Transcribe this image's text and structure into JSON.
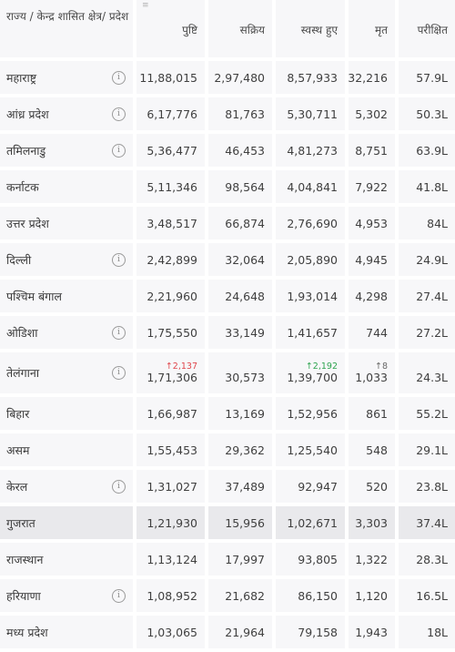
{
  "headers": {
    "state": "राज्य / केन्द्र शासित क्षेत्र/ प्रदेश",
    "confirmed": "पुष्टि",
    "active": "सक्रिय",
    "recovered": "स्वस्थ हुए",
    "deceased": "मृत",
    "tested": "परीक्षित"
  },
  "sort_icon": "sort-icon",
  "info_icon": "info-icon",
  "rows": [
    {
      "state": "महाराष्ट्र",
      "confirmed": "11,88,015",
      "active": "2,97,480",
      "recovered": "8,57,933",
      "deceased": "32,216",
      "tested": "57.9L"
    },
    {
      "state": "आंध्र प्रदेश",
      "confirmed": "6,17,776",
      "active": "81,763",
      "recovered": "5,30,711",
      "deceased": "5,302",
      "tested": "50.3L"
    },
    {
      "state": "तमिलनाडु",
      "confirmed": "5,36,477",
      "active": "46,453",
      "recovered": "4,81,273",
      "deceased": "8,751",
      "tested": "63.9L"
    },
    {
      "state": "कर्नाटक",
      "confirmed": "5,11,346",
      "active": "98,564",
      "recovered": "4,04,841",
      "deceased": "7,922",
      "tested": "41.8L"
    },
    {
      "state": "उत्तर प्रदेश",
      "confirmed": "3,48,517",
      "active": "66,874",
      "recovered": "2,76,690",
      "deceased": "4,953",
      "tested": "84L"
    },
    {
      "state": "दिल्ली",
      "confirmed": "2,42,899",
      "active": "32,064",
      "recovered": "2,05,890",
      "deceased": "4,945",
      "tested": "24.9L"
    },
    {
      "state": "पश्चिम बंगाल",
      "confirmed": "2,21,960",
      "active": "24,648",
      "recovered": "1,93,014",
      "deceased": "4,298",
      "tested": "27.4L"
    },
    {
      "state": "ओडिशा",
      "confirmed": "1,75,550",
      "active": "33,149",
      "recovered": "1,41,657",
      "deceased": "744",
      "tested": "27.2L"
    },
    {
      "state": "तेलंगाना",
      "confirmed": "1,71,306",
      "confirmed_delta": "↑2,137",
      "active": "30,573",
      "recovered": "1,39,700",
      "recovered_delta": "↑2,192",
      "deceased": "1,033",
      "deceased_delta": "↑8",
      "tested": "24.3L"
    },
    {
      "state": "बिहार",
      "confirmed": "1,66,987",
      "active": "13,169",
      "recovered": "1,52,956",
      "deceased": "861",
      "tested": "55.2L"
    },
    {
      "state": "असम",
      "confirmed": "1,55,453",
      "active": "29,362",
      "recovered": "1,25,540",
      "deceased": "548",
      "tested": "29.1L"
    },
    {
      "state": "केरल",
      "confirmed": "1,31,027",
      "active": "37,489",
      "recovered": "92,947",
      "deceased": "520",
      "tested": "23.8L"
    },
    {
      "state": "गुजरात",
      "confirmed": "1,21,930",
      "active": "15,956",
      "recovered": "1,02,671",
      "deceased": "3,303",
      "tested": "37.4L"
    },
    {
      "state": "राजस्थान",
      "confirmed": "1,13,124",
      "active": "17,997",
      "recovered": "93,805",
      "deceased": "1,322",
      "tested": "28.3L"
    },
    {
      "state": "हरियाणा",
      "confirmed": "1,08,952",
      "active": "21,682",
      "recovered": "86,150",
      "deceased": "1,120",
      "tested": "16.5L"
    },
    {
      "state": "मध्य प्रदेश",
      "confirmed": "1,03,065",
      "active": "21,964",
      "recovered": "79,158",
      "deceased": "1,943",
      "tested": "18L"
    }
  ]
}
